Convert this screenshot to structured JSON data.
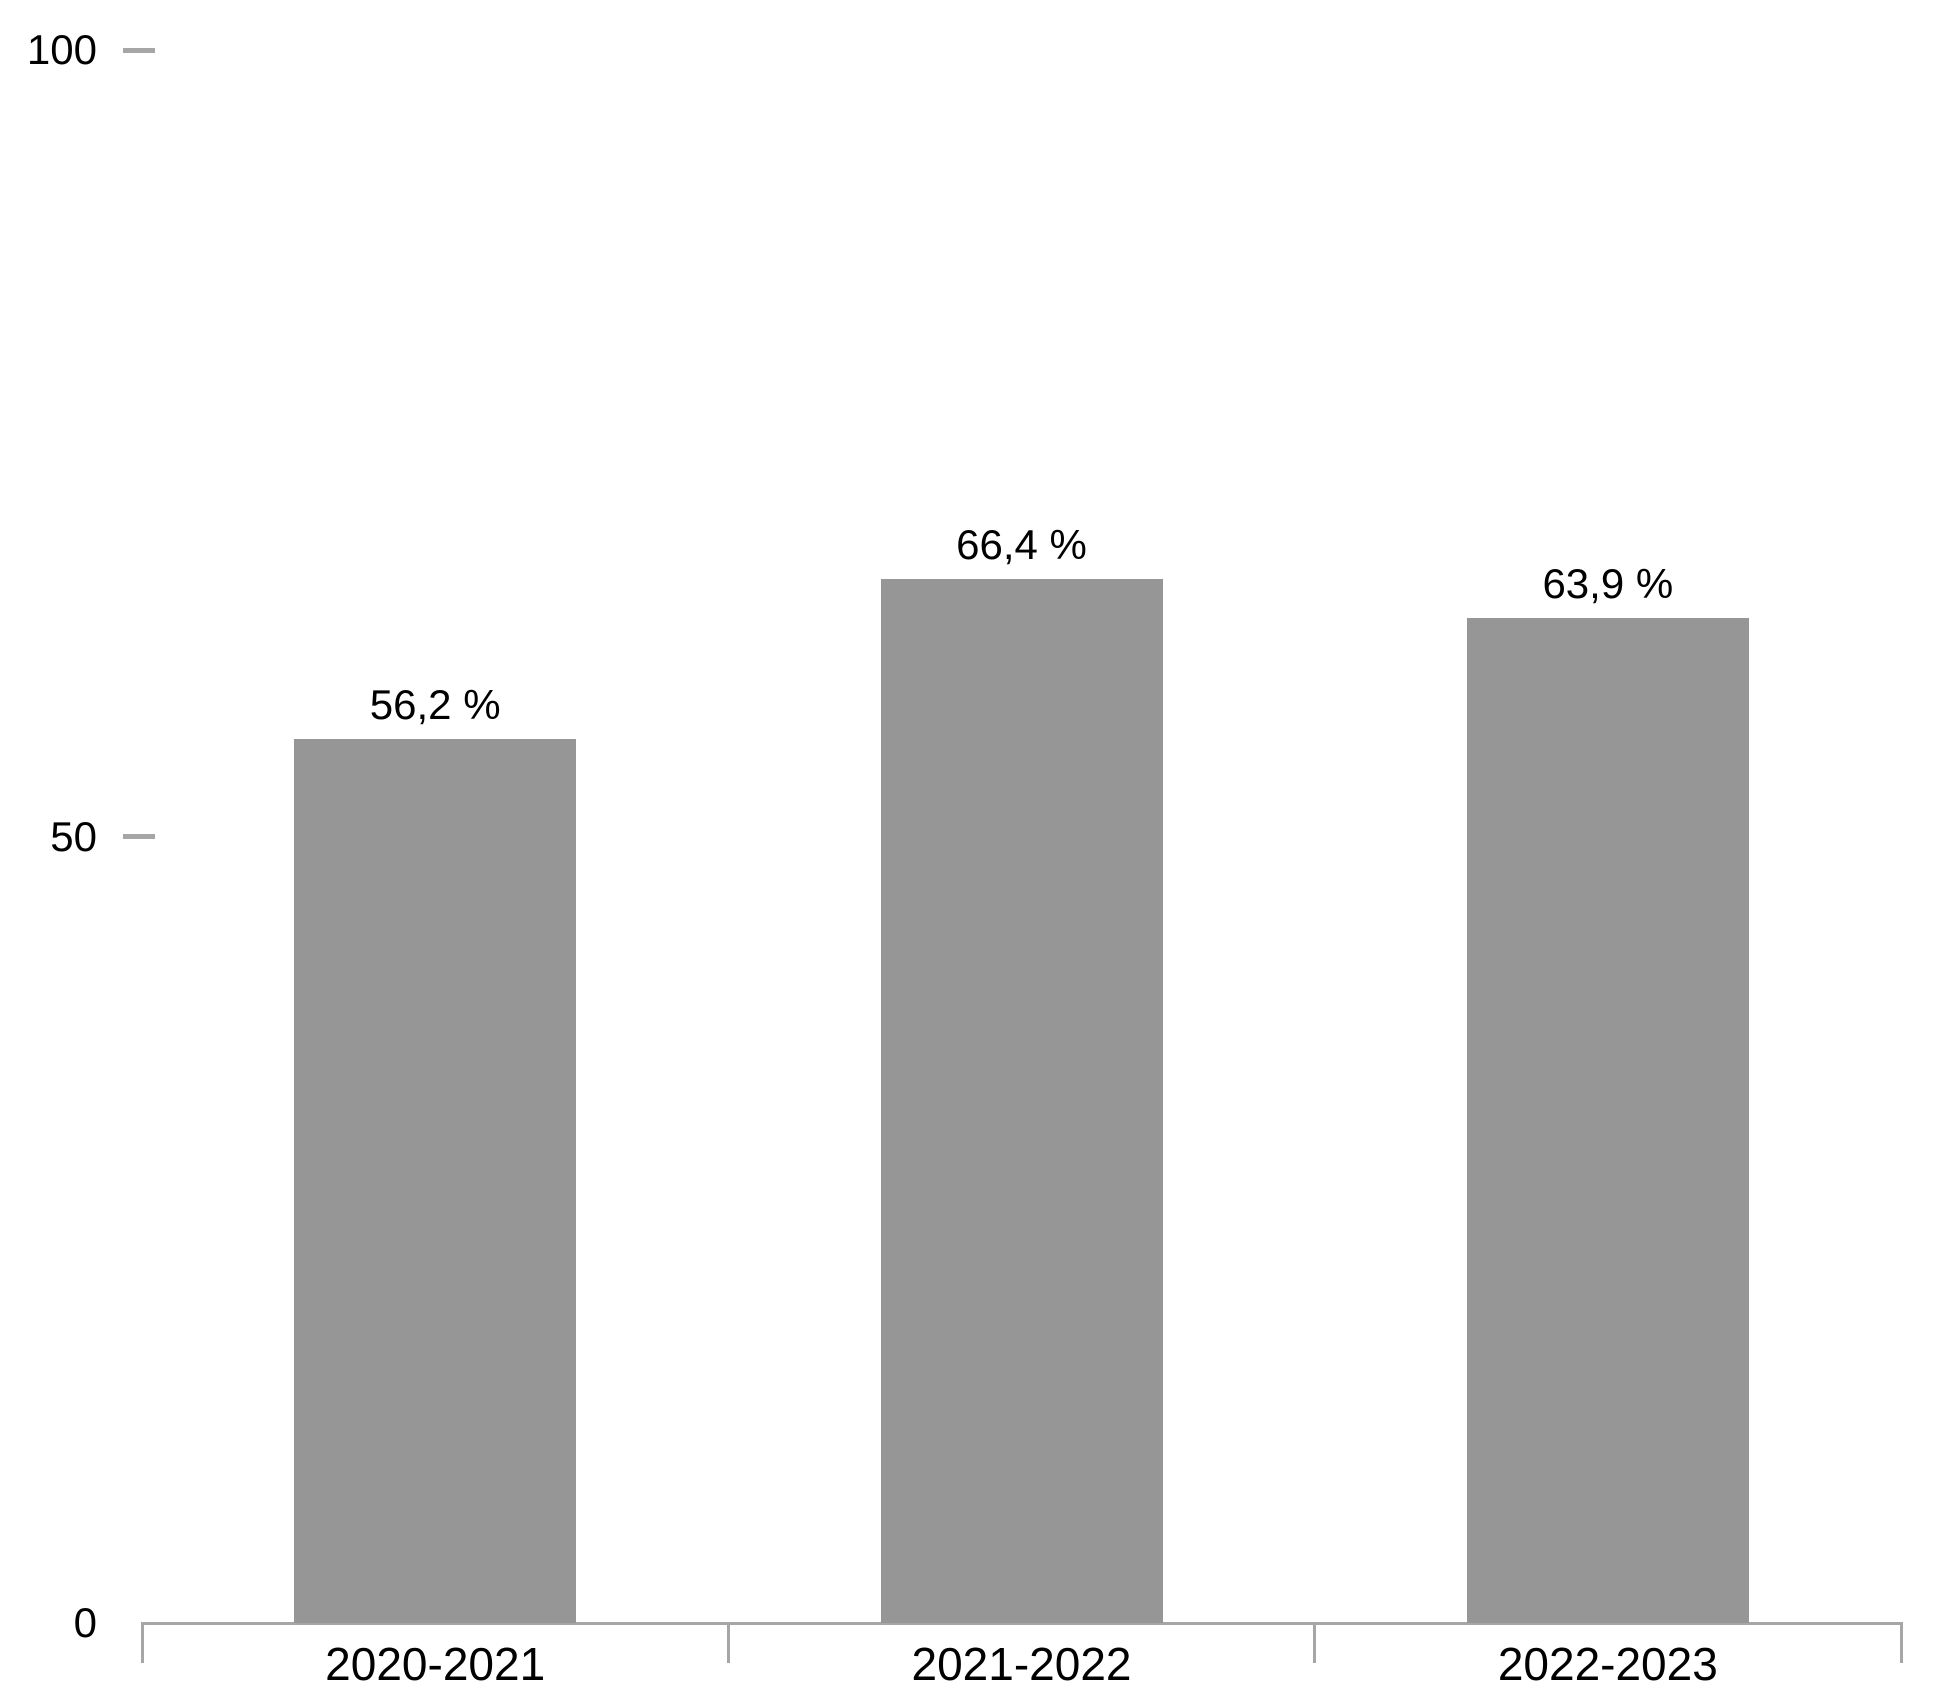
{
  "chart_data": {
    "type": "bar",
    "categories": [
      "2020-2021",
      "2021-2022",
      "2022-2023"
    ],
    "values": [
      56.2,
      66.4,
      63.9
    ],
    "value_labels": [
      "56,2 %",
      "66,4 %",
      "63,9 %"
    ],
    "title": "",
    "xlabel": "",
    "ylabel": "",
    "ylim": [
      0,
      100
    ],
    "yticks": [
      0,
      50,
      100
    ],
    "ytick_labels": [
      "0",
      "50",
      "100"
    ],
    "grid": false,
    "legend": null,
    "colors": {
      "bar": "#969696",
      "axis": "#a6a6a6",
      "text": "#000000",
      "background": "#ffffff"
    }
  }
}
